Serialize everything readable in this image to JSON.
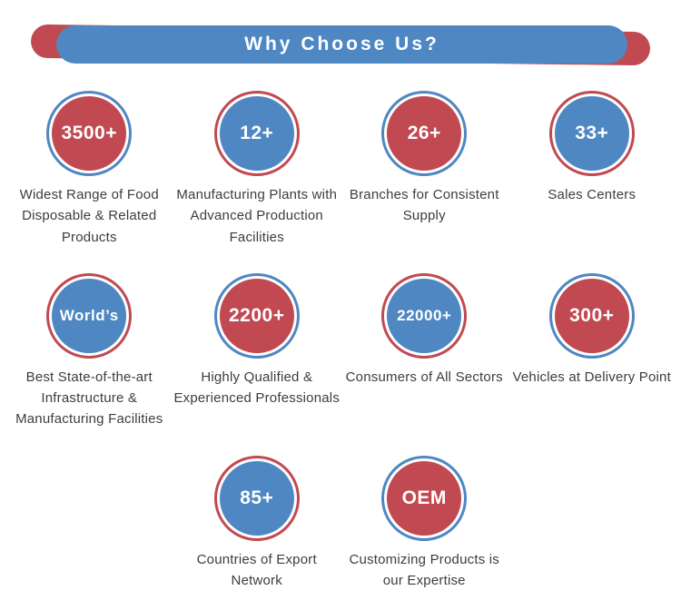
{
  "header": {
    "title": "Why Choose Us?"
  },
  "colors": {
    "blue": "#4e87c2",
    "red": "#c14951",
    "text": "#3d3d3d"
  },
  "badges": [
    {
      "value": "3500+",
      "circle": "red",
      "ring": "blue",
      "label": "Widest Range of Food Disposable & Related Products"
    },
    {
      "value": "12+",
      "circle": "blue",
      "ring": "red",
      "label": "Manufacturing Plants with Advanced Production Facilities"
    },
    {
      "value": "26+",
      "circle": "red",
      "ring": "blue",
      "label": "Branches for Consistent Supply"
    },
    {
      "value": "33+",
      "circle": "blue",
      "ring": "red",
      "label": "Sales Centers"
    },
    {
      "value": "World’s",
      "circle": "blue",
      "ring": "red",
      "label": "Best State-of-the-art Infrastructure & Manufacturing Facilities"
    },
    {
      "value": "2200+",
      "circle": "red",
      "ring": "blue",
      "label": "Highly Qualified & Experienced Professionals"
    },
    {
      "value": "22000+",
      "circle": "blue",
      "ring": "red",
      "label": "Consumers of All Sectors"
    },
    {
      "value": "300+",
      "circle": "red",
      "ring": "blue",
      "label": "Vehicles at Delivery Point"
    },
    {
      "value": "85+",
      "circle": "blue",
      "ring": "red",
      "label": "Countries of Export Network"
    },
    {
      "value": "OEM",
      "circle": "red",
      "ring": "blue",
      "label": "Customizing Products is our Expertise"
    }
  ]
}
